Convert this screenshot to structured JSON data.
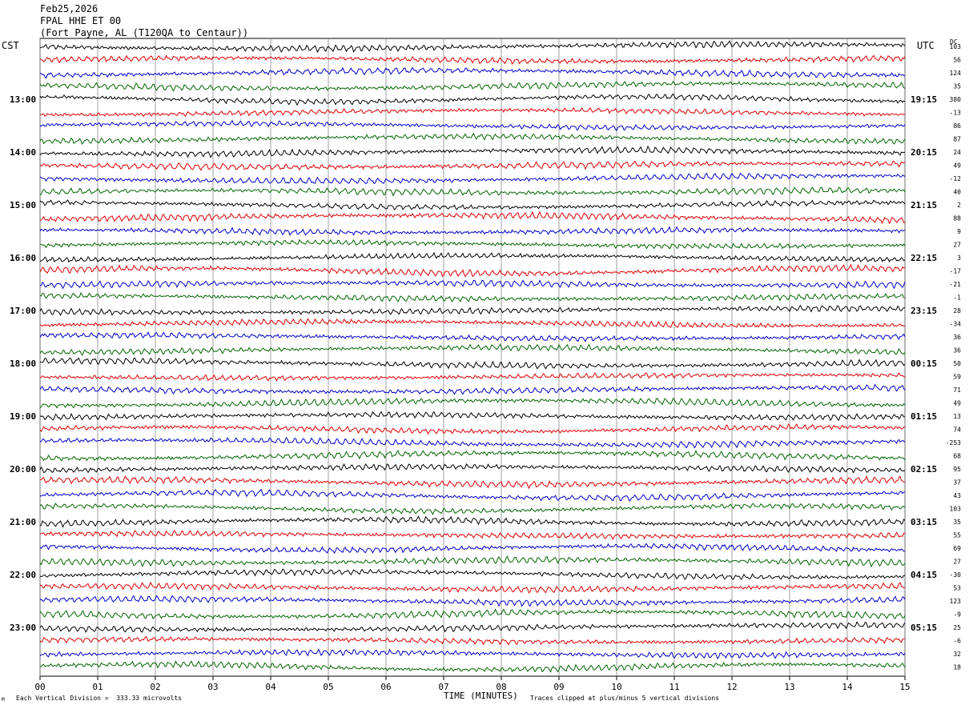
{
  "header": {
    "date": "Feb25,2026",
    "station": "FPAL HHE ET 00",
    "location": "(Fort Payne, AL (T120QA to Centaur))"
  },
  "left_axis_label": "CST",
  "right_axis_label": "UTC",
  "dc_label": "DC",
  "footer": {
    "scale_note": "Each Vertical Division =  333.33 microvolts",
    "clip_note": "Traces clipped at plus/minus 5 vertical divisions",
    "corner_mark": "M"
  },
  "colors": {
    "trace_cycle": [
      "#000000",
      "#dd0000",
      "#0000cc",
      "#006600"
    ],
    "grid": "#888888"
  },
  "chart_data": {
    "type": "line",
    "xlabel": "TIME (MINUTES)",
    "xlim": [
      0,
      15
    ],
    "x_ticks": [
      "00",
      "01",
      "02",
      "03",
      "04",
      "05",
      "06",
      "07",
      "08",
      "09",
      "10",
      "11",
      "12",
      "13",
      "14",
      "15"
    ],
    "left_hour_labels": [
      "13:00",
      "14:00",
      "15:00",
      "16:00",
      "17:00",
      "18:00",
      "19:00",
      "20:00",
      "21:00",
      "22:00",
      "23:00"
    ],
    "right_hour_labels": [
      "19:15",
      "20:15",
      "21:15",
      "22:15",
      "23:15",
      "00:15",
      "01:15",
      "02:15",
      "03:15",
      "04:15",
      "05:15"
    ],
    "traces_per_hour": 4,
    "dc_offsets": [
      103,
      56,
      124,
      35,
      380,
      -13,
      86,
      87,
      24,
      49,
      -12,
      40,
      2,
      88,
      9,
      27,
      3,
      -17,
      -21,
      -1,
      28,
      -34,
      36,
      36,
      50,
      59,
      71,
      49,
      13,
      74,
      -253,
      68,
      95,
      37,
      43,
      103,
      35,
      55,
      69,
      27,
      -30,
      53,
      123,
      -9,
      25,
      -6,
      32,
      18
    ]
  }
}
